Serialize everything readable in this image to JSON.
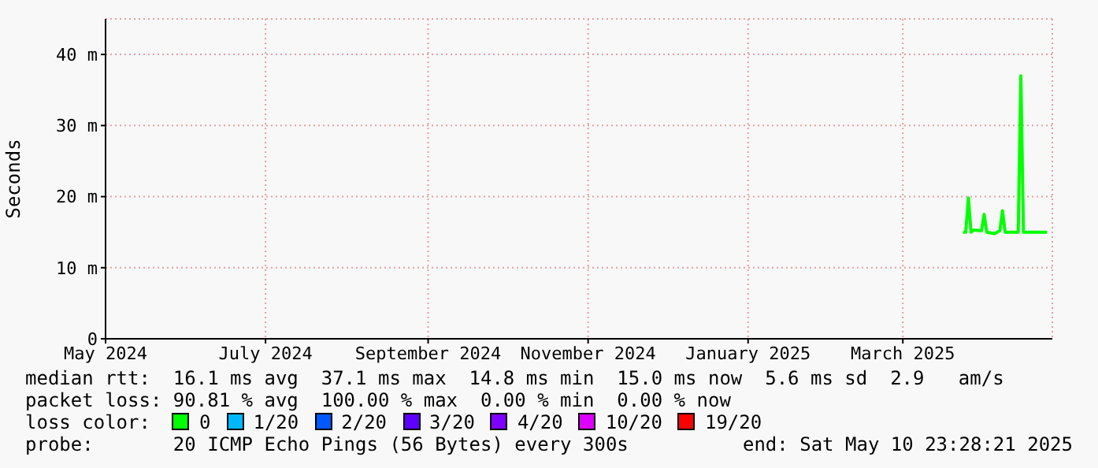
{
  "chart_data": {
    "type": "line",
    "ylabel": "Seconds",
    "legend_title": "loss color:",
    "legend": "bottom",
    "grid": true,
    "x": [
      "2025-03-24",
      "2025-03-25",
      "2025-03-26",
      "2025-03-27",
      "2025-03-28",
      "2025-03-31",
      "2025-04-01",
      "2025-04-02",
      "2025-04-05",
      "2025-04-07",
      "2025-04-08",
      "2025-04-09",
      "2025-04-12",
      "2025-04-14",
      "2025-04-15",
      "2025-04-16",
      "2025-04-20",
      "2025-04-25"
    ],
    "series": [
      {
        "name": "0",
        "color": "#00ff00",
        "values": [
          15,
          15,
          19.8,
          15,
          15.3,
          15.2,
          17.5,
          15,
          14.8,
          15.2,
          18,
          15,
          15,
          15,
          37,
          15,
          15,
          15
        ]
      },
      {
        "name": "1/20",
        "color": "#00b8ff",
        "values": [
          null,
          null,
          null,
          null,
          null,
          null,
          null,
          null,
          null,
          null,
          null,
          null,
          null,
          null,
          null,
          null,
          null,
          null
        ]
      },
      {
        "name": "2/20",
        "color": "#0059ff",
        "values": [
          null,
          null,
          null,
          null,
          null,
          null,
          null,
          null,
          null,
          null,
          null,
          null,
          null,
          null,
          null,
          null,
          null,
          null
        ]
      },
      {
        "name": "3/20",
        "color": "#5e00ff",
        "values": [
          null,
          null,
          null,
          null,
          null,
          null,
          null,
          null,
          null,
          null,
          null,
          null,
          null,
          null,
          null,
          null,
          null,
          null
        ]
      },
      {
        "name": "4/20",
        "color": "#7e00ff",
        "values": [
          null,
          null,
          null,
          null,
          null,
          null,
          null,
          null,
          null,
          null,
          null,
          null,
          null,
          null,
          null,
          null,
          null,
          null
        ]
      },
      {
        "name": "10/20",
        "color": "#dd00ff",
        "values": [
          null,
          null,
          null,
          null,
          null,
          null,
          null,
          null,
          null,
          null,
          null,
          null,
          null,
          null,
          null,
          null,
          null,
          null
        ]
      },
      {
        "name": "19/20",
        "color": "#ff0000",
        "values": [
          null,
          null,
          null,
          null,
          null,
          null,
          null,
          null,
          null,
          null,
          null,
          null,
          null,
          null,
          null,
          null,
          null,
          null
        ]
      }
    ],
    "xlim": [
      "2024-05-01",
      "2025-04-27"
    ],
    "xticks": [
      {
        "value": "2024-05-01",
        "label": "May 2024"
      },
      {
        "value": "2024-07-01",
        "label": "July 2024"
      },
      {
        "value": "2024-09-01",
        "label": "September 2024"
      },
      {
        "value": "2024-11-01",
        "label": "November 2024"
      },
      {
        "value": "2025-01-01",
        "label": "January 2025"
      },
      {
        "value": "2025-03-01",
        "label": "March 2025"
      }
    ],
    "ylim": [
      0,
      45
    ],
    "yticks": [
      0,
      {
        "value": 10,
        "label": "10 m"
      },
      {
        "value": 20,
        "label": "20 m"
      },
      {
        "value": 30,
        "label": "30 m"
      },
      {
        "value": 40,
        "label": "40 m"
      }
    ],
    "annotations": [
      "median rtt:  16.1 ms avg  37.1 ms max  14.8 ms min  15.0 ms now  5.6 ms sd  2.9   am/s",
      "packet loss: 90.81 % avg  100.00 % max  0.00 % min  0.00 % now",
      "probe:       20 ICMP Echo Pings (56 Bytes) every 300s",
      "end: Sat May 10 23:28:21 2025"
    ]
  }
}
